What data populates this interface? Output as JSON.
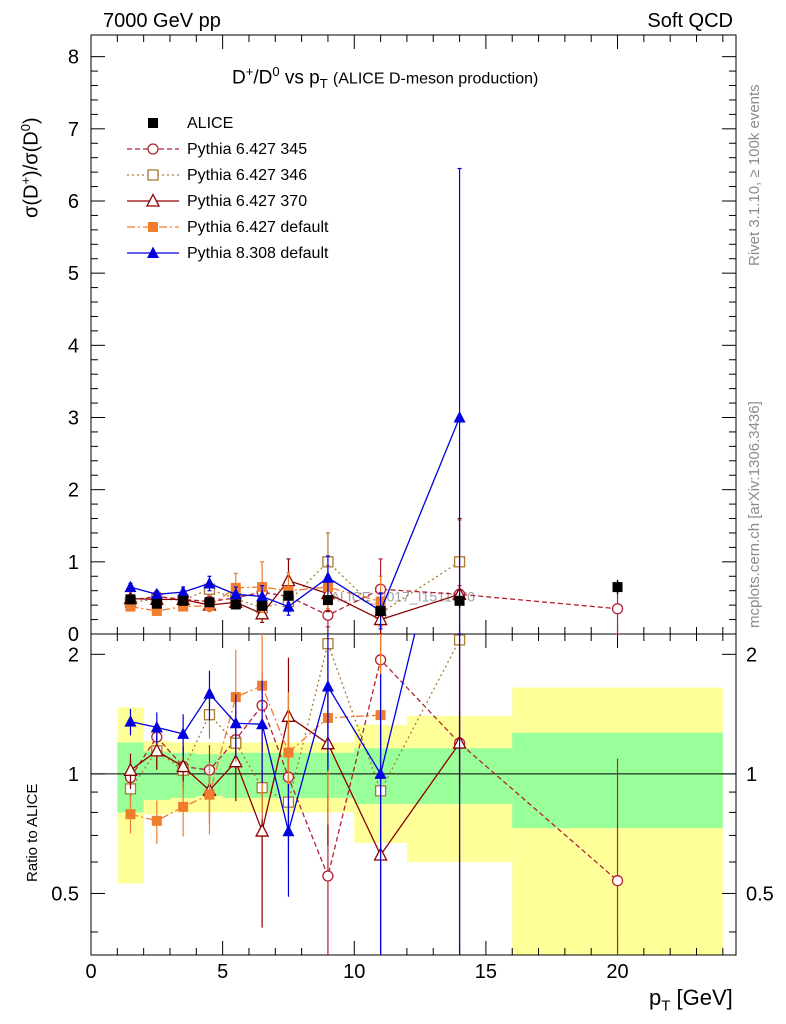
{
  "header": {
    "left": "7000 GeV pp",
    "right": "Soft QCD"
  },
  "side": {
    "rivet": "Rivet 3.1.10, ≥ 100k events",
    "mcplots": "mcplots.cern.ch [arXiv:1306.3436]"
  },
  "chart_data": {
    "type": "scatter",
    "title": "D+/D0 vs pT",
    "title_sub": "(ALICE D-meson production)",
    "title_parts": {
      "d": "D",
      "plus": "+",
      "slash": "/D",
      "zero": "0",
      "vs": " vs p",
      "t": "T"
    },
    "watermark": "ALICE_2017_I1511870",
    "xlabel": "pT [GeV]",
    "xlabel_parts": {
      "p": "p",
      "t": "T",
      "unit": " [GeV]"
    },
    "ylabel_top": "σ(D+)/σ(D0)",
    "ylabel_top_parts": {
      "a": "σ(D",
      "plus": "+",
      "b": ")/σ(D",
      "zero": "0",
      "c": ")"
    },
    "ylabel_bottom": "Ratio to ALICE",
    "xlim": [
      0,
      24.5
    ],
    "ylim_top": [
      0,
      8.3
    ],
    "ylim_bottom": [
      0.35,
      2.25
    ],
    "x_ticks": [
      "0",
      "5",
      "10",
      "15",
      "20"
    ],
    "y_ticks_top": [
      "0",
      "1",
      "2",
      "3",
      "4",
      "5",
      "6",
      "7",
      "8"
    ],
    "y_ticks_bottom": [
      "0.5",
      "1",
      "2"
    ],
    "data": {
      "name": "ALICE",
      "color": "#000000",
      "x": [
        1.5,
        2.5,
        3.5,
        4.5,
        5.5,
        6.5,
        7.5,
        9,
        11,
        14,
        20
      ],
      "xlo": [
        1,
        2,
        3,
        4,
        5,
        6,
        7,
        8,
        10,
        12,
        16
      ],
      "xhi": [
        2,
        3,
        4,
        5,
        6,
        7,
        8,
        10,
        12,
        16,
        24
      ],
      "y": [
        0.48,
        0.42,
        0.46,
        0.44,
        0.41,
        0.39,
        0.53,
        0.47,
        0.32,
        0.46,
        0.65
      ],
      "err": [
        0.05,
        0.04,
        0.04,
        0.04,
        0.04,
        0.05,
        0.06,
        0.06,
        0.08,
        0.1,
        0.1
      ],
      "band_inner": [
        0.2,
        0.14,
        0.13,
        0.12,
        0.13,
        0.13,
        0.13,
        0.13,
        0.16,
        0.16,
        0.27
      ],
      "band_outer": [
        0.47,
        0.21,
        0.2,
        0.2,
        0.2,
        0.2,
        0.2,
        0.2,
        0.33,
        0.4,
        0.65
      ]
    },
    "series": [
      {
        "name": "Pythia 6.427 345",
        "color": "#b22234",
        "dash": "5,3",
        "marker": "open-circle",
        "x": [
          1.5,
          2.5,
          3.5,
          4.5,
          5.5,
          6.5,
          7.5,
          9,
          11,
          14,
          20
        ],
        "y": [
          0.47,
          0.52,
          0.48,
          0.45,
          0.5,
          0.58,
          0.52,
          0.26,
          0.62,
          0.55,
          0.35
        ],
        "err": [
          0.05,
          0.05,
          0.06,
          0.07,
          0.09,
          0.13,
          0.14,
          0.16,
          0.42,
          0.12,
          0.36
        ]
      },
      {
        "name": "Pythia 6.427 346",
        "color": "#a87b30",
        "dash": "2,3",
        "marker": "open-square",
        "x": [
          1.5,
          2.5,
          3.5,
          4.5,
          5.5,
          6.5,
          7.5,
          9,
          11,
          14
        ],
        "y": [
          0.44,
          0.48,
          0.47,
          0.62,
          0.49,
          0.36,
          0.45,
          1.0,
          0.29,
          1.0
        ],
        "err": [
          0.04,
          0.05,
          0.06,
          0.08,
          0.09,
          0.15,
          0.14,
          0.4,
          0.18,
          0.58
        ]
      },
      {
        "name": "Pythia 6.427 370",
        "color": "#8b0000",
        "dash": "",
        "marker": "open-triangle",
        "x": [
          1.5,
          2.5,
          3.5,
          4.5,
          5.5,
          6.5,
          7.5,
          9,
          11,
          14
        ],
        "y": [
          0.49,
          0.48,
          0.48,
          0.4,
          0.44,
          0.28,
          0.74,
          0.56,
          0.2,
          0.55
        ],
        "err": [
          0.05,
          0.05,
          0.06,
          0.07,
          0.09,
          0.12,
          0.3,
          0.25,
          0.25,
          1.05
        ]
      },
      {
        "name": "Pythia 6.427 default",
        "color": "#f07c2d",
        "dash": "8,3,2,3",
        "marker": "filled-square",
        "x": [
          1.5,
          2.5,
          3.5,
          4.5,
          5.5,
          6.5,
          7.5,
          9,
          11
        ],
        "y": [
          0.38,
          0.32,
          0.38,
          0.39,
          0.64,
          0.65,
          0.6,
          0.65,
          0.45
        ],
        "err": [
          0.04,
          0.04,
          0.06,
          0.08,
          0.2,
          0.35,
          0.25,
          0.3,
          0.35
        ]
      },
      {
        "name": "Pythia 8.308 default",
        "color": "#0000e0",
        "dash": "",
        "marker": "filled-triangle",
        "x": [
          1.5,
          2.5,
          3.5,
          4.5,
          5.5,
          6.5,
          7.5,
          9,
          11,
          14
        ],
        "y": [
          0.65,
          0.55,
          0.58,
          0.7,
          0.55,
          0.52,
          0.38,
          0.78,
          0.32,
          3.0
        ],
        "err": [
          0.05,
          0.05,
          0.07,
          0.1,
          0.1,
          0.15,
          0.12,
          0.3,
          0.25,
          3.45
        ]
      }
    ]
  }
}
